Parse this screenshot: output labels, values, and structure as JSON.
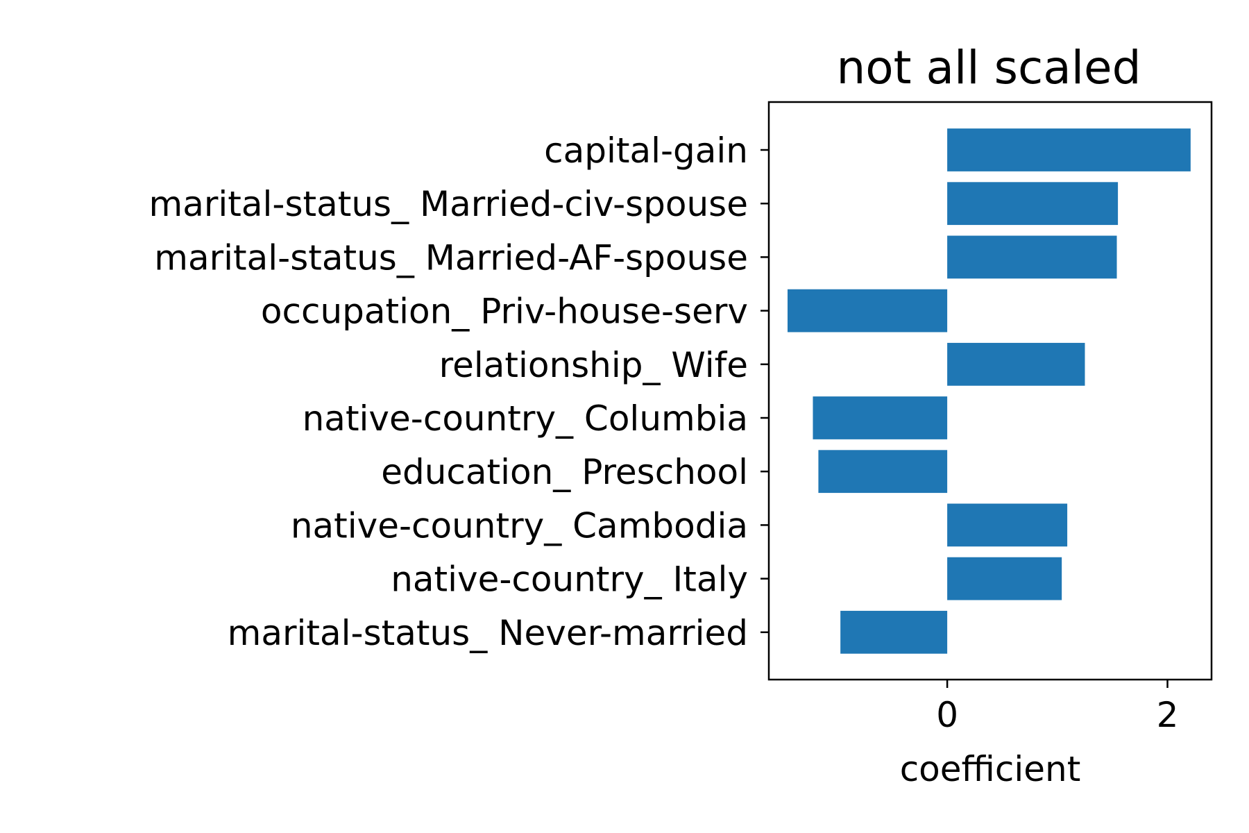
{
  "chart_data": {
    "type": "bar",
    "orientation": "horizontal",
    "title": "not all scaled",
    "xlabel": "coefficient",
    "ylabel": "",
    "xlim": [
      -1.62,
      2.4
    ],
    "xticks": [
      0,
      2
    ],
    "grid": false,
    "color": "#1f77b4",
    "categories": [
      "capital-gain",
      "marital-status_ Married-civ-spouse",
      "marital-status_ Married-AF-spouse",
      "occupation_ Priv-house-serv",
      "relationship_ Wife",
      "native-country_ Columbia",
      "education_ Preschool",
      "native-country_ Cambodia",
      "native-country_ Italy",
      "marital-status_ Never-married"
    ],
    "values": [
      2.21,
      1.55,
      1.54,
      -1.45,
      1.25,
      -1.22,
      -1.17,
      1.09,
      1.04,
      -0.97
    ]
  }
}
